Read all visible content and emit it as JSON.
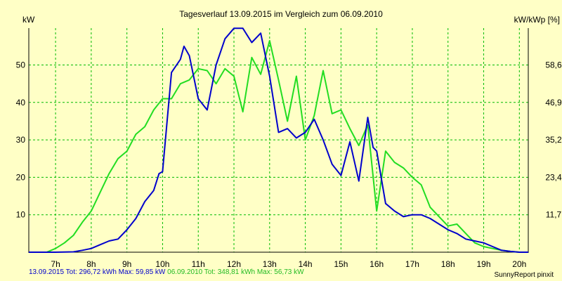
{
  "chart_data": {
    "type": "line",
    "title": "Tagesverlauf 13.09.2015 im Vergleich zum 06.09.2010",
    "ylabel_left": "kW",
    "ylabel_right": "kW/kWp [%]",
    "xlim": [
      6.25,
      20.25
    ],
    "ylim": [
      0,
      59.85
    ],
    "x_ticks": [
      7,
      8,
      9,
      10,
      11,
      12,
      13,
      14,
      15,
      16,
      17,
      18,
      19,
      20
    ],
    "x_tick_labels": [
      "7h",
      "8h",
      "9h",
      "10h",
      "11h",
      "12h",
      "13h",
      "14h",
      "15h",
      "16h",
      "17h",
      "18h",
      "19h",
      "20h"
    ],
    "y_ticks_left": [
      10,
      20,
      30,
      40,
      50
    ],
    "y_ticks_right_values": [
      10,
      20,
      30,
      40,
      50
    ],
    "y_ticks_right_labels": [
      "11,7",
      "23,4",
      "35,2",
      "46,9",
      "58,6"
    ],
    "grid": true,
    "colors": {
      "background": "#ffffc6",
      "grid": "#00bb00",
      "axis": "#000000"
    },
    "series": [
      {
        "name": "13.09.2015",
        "color": "#0000cc",
        "x": [
          6.25,
          7.0,
          7.5,
          7.75,
          8.0,
          8.25,
          8.5,
          8.75,
          9.0,
          9.25,
          9.5,
          9.75,
          9.9,
          10.0,
          10.25,
          10.5,
          10.6,
          10.75,
          11.0,
          11.25,
          11.5,
          11.75,
          12.0,
          12.25,
          12.5,
          12.75,
          13.0,
          13.25,
          13.5,
          13.75,
          14.0,
          14.25,
          14.5,
          14.75,
          15.0,
          15.25,
          15.5,
          15.75,
          15.9,
          16.0,
          16.25,
          16.5,
          16.75,
          17.0,
          17.25,
          17.5,
          17.75,
          18.0,
          18.25,
          18.5,
          18.75,
          19.0,
          19.25,
          19.5,
          19.75,
          20.0,
          20.25
        ],
        "y": [
          0,
          0,
          0.1,
          0.5,
          1,
          2,
          3,
          3.5,
          6,
          9,
          13.5,
          16.5,
          21,
          21.5,
          48,
          51.5,
          55,
          52.5,
          41,
          38,
          50,
          57,
          59.8,
          59.8,
          56,
          58.5,
          47,
          32,
          33,
          30.5,
          32,
          35.5,
          30,
          23.5,
          20.5,
          29.5,
          19,
          36,
          28,
          27,
          13,
          11,
          9.5,
          10,
          10,
          9,
          7.5,
          6,
          5,
          3.5,
          3,
          2.5,
          1.5,
          0.5,
          0.2,
          0,
          0
        ]
      },
      {
        "name": "06.09.2010",
        "color": "#22dd22",
        "x": [
          6.25,
          6.75,
          7.0,
          7.25,
          7.5,
          7.75,
          8.0,
          8.25,
          8.5,
          8.75,
          9.0,
          9.25,
          9.5,
          9.75,
          10.0,
          10.25,
          10.5,
          10.75,
          11.0,
          11.25,
          11.5,
          11.75,
          12.0,
          12.25,
          12.5,
          12.75,
          13.0,
          13.25,
          13.5,
          13.75,
          14.0,
          14.25,
          14.5,
          14.75,
          15.0,
          15.25,
          15.5,
          15.75,
          16.0,
          16.25,
          16.5,
          16.75,
          17.0,
          17.25,
          17.5,
          17.75,
          18.0,
          18.25,
          18.5,
          18.75,
          19.0,
          19.25,
          19.5,
          19.75,
          20.0,
          20.25
        ],
        "y": [
          0,
          0,
          1,
          2.5,
          4.5,
          8,
          11,
          16,
          21,
          25,
          27,
          31.5,
          33.5,
          38,
          41,
          41,
          45,
          46,
          49,
          48.5,
          45,
          49,
          47,
          37.5,
          52,
          47.5,
          56.5,
          46,
          35,
          47,
          30,
          36.5,
          48.5,
          37,
          38,
          33,
          28.5,
          34,
          11,
          27,
          24,
          22.5,
          20,
          18,
          12,
          9.5,
          7,
          7.5,
          5,
          2.5,
          1.5,
          1,
          0.5,
          0.2,
          0,
          0
        ]
      }
    ]
  },
  "footer": {
    "series1_summary": "13.09.2015 Tot: 296,72 kWh Max: 59,85 kW",
    "series2_summary": "06.09.2010 Tot: 348,81 kWh Max: 56,73 kW",
    "credit": "SunnyReport pinxit"
  }
}
